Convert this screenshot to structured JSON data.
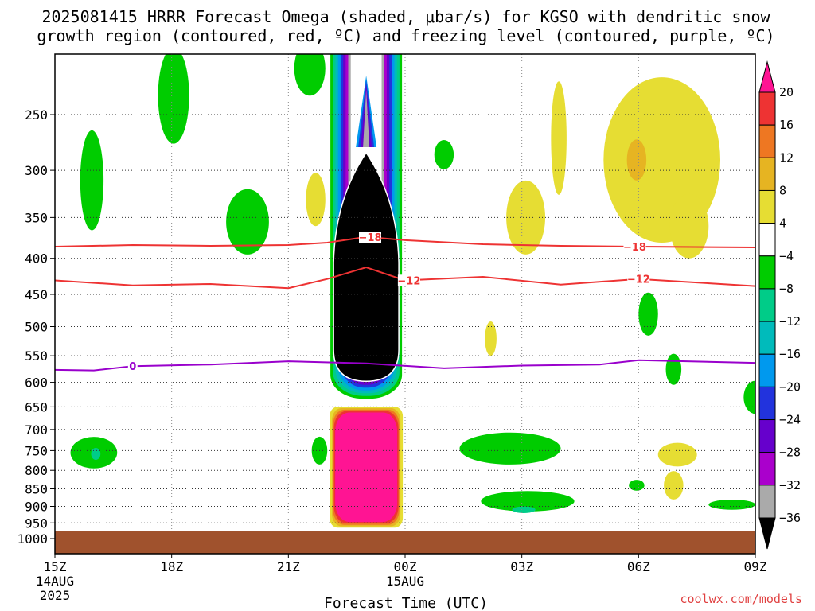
{
  "chart_data": {
    "type": "heatmap",
    "title": "2025081415 HRRR Forecast Omega (shaded, μbar/s) for KGSO with dendritic snow growth region (contoured, red, ºC) and freezing level (contoured, purple, ºC)",
    "title_line1": "2025081415 HRRR Forecast Omega (shaded, μbar/s) for KGSO with dendritic snow",
    "title_line2": "growth region (contoured, red, ºC) and freezing level (contoured, purple, ºC)",
    "xlabel": "Forecast Time (UTC)",
    "ylabel": "",
    "x_ticks": [
      {
        "hours": 0,
        "label": "15Z",
        "sub1": "14AUG",
        "sub2": "2025"
      },
      {
        "hours": 3,
        "label": "18Z",
        "sub1": "",
        "sub2": ""
      },
      {
        "hours": 6,
        "label": "21Z",
        "sub1": "",
        "sub2": ""
      },
      {
        "hours": 9,
        "label": "00Z",
        "sub1": "15AUG",
        "sub2": ""
      },
      {
        "hours": 12,
        "label": "03Z",
        "sub1": "",
        "sub2": ""
      },
      {
        "hours": 15,
        "label": "06Z",
        "sub1": "",
        "sub2": ""
      },
      {
        "hours": 18,
        "label": "09Z",
        "sub1": "",
        "sub2": ""
      }
    ],
    "xlim_hours": [
      0,
      18
    ],
    "y_ticks": [
      250,
      300,
      350,
      400,
      450,
      500,
      550,
      600,
      650,
      700,
      750,
      800,
      850,
      900,
      950,
      1000
    ],
    "ylim_hPa": [
      200,
      1000
    ],
    "y_scale": "log-pressure",
    "grid": true,
    "colorbar": {
      "labels": [
        "20",
        "16",
        "12",
        "8",
        "4",
        "−4",
        "−8",
        "−12",
        "−16",
        "−20",
        "−24",
        "−28",
        "−32",
        "−36"
      ],
      "colors": [
        "#ff1493",
        "#ee3333",
        "#ee7722",
        "#e6b422",
        "#e6dd33",
        "#ffffff",
        "#00cc00",
        "#00cc88",
        "#00bbbb",
        "#0099ee",
        "#2233dd",
        "#6600cc",
        "#aa00cc",
        "#aaaaaa",
        "#000000"
      ],
      "extends": "both"
    },
    "omega_regions": [
      {
        "name": "green",
        "level": "-4 to -8",
        "color": "#00cc00",
        "blobs": [
          {
            "t": 0.95,
            "p": 310,
            "dt": 0.3,
            "dp": 55
          },
          {
            "t": 3.05,
            "p": 235,
            "dt": 0.4,
            "dp": 40
          },
          {
            "t": 4.95,
            "p": 355,
            "dt": 0.55,
            "dp": 40
          },
          {
            "t": 6.55,
            "p": 215,
            "dt": 0.4,
            "dp": 20
          },
          {
            "t": 10.0,
            "p": 285,
            "dt": 0.25,
            "dp": 14
          },
          {
            "t": 15.25,
            "p": 480,
            "dt": 0.25,
            "dp": 35
          },
          {
            "t": 15.9,
            "p": 575,
            "dt": 0.2,
            "dp": 30
          },
          {
            "t": 18.0,
            "p": 630,
            "dt": 0.3,
            "dp": 35
          },
          {
            "t": 1.0,
            "p": 755,
            "dt": 0.6,
            "dp": 40
          },
          {
            "t": 6.8,
            "p": 750,
            "dt": 0.2,
            "dp": 35
          },
          {
            "t": 11.7,
            "p": 745,
            "dt": 1.3,
            "dp": 40
          },
          {
            "t": 12.15,
            "p": 885,
            "dt": 1.2,
            "dp": 30
          },
          {
            "t": 14.95,
            "p": 840,
            "dt": 0.2,
            "dp": 15
          },
          {
            "t": 17.4,
            "p": 895,
            "dt": 0.6,
            "dp": 15
          }
        ]
      },
      {
        "name": "teal",
        "level": "-8 to -12",
        "color": "#00cc88",
        "blobs": [
          {
            "t": 1.05,
            "p": 758,
            "dt": 0.12,
            "dp": 15
          },
          {
            "t": 12.05,
            "p": 910,
            "dt": 0.3,
            "dp": 10
          }
        ]
      },
      {
        "name": "yellow",
        "level": "4 to 8",
        "color": "#e6dd33",
        "blobs": [
          {
            "t": 6.7,
            "p": 330,
            "dt": 0.25,
            "dp": 30
          },
          {
            "t": 12.1,
            "p": 350,
            "dt": 0.5,
            "dp": 45
          },
          {
            "t": 12.95,
            "p": 270,
            "dt": 0.2,
            "dp": 55
          },
          {
            "t": 15.6,
            "p": 290,
            "dt": 1.5,
            "dp": 90
          },
          {
            "t": 16.3,
            "p": 360,
            "dt": 0.5,
            "dp": 40
          },
          {
            "t": 11.2,
            "p": 520,
            "dt": 0.15,
            "dp": 30
          },
          {
            "t": 16.0,
            "p": 760,
            "dt": 0.5,
            "dp": 30
          },
          {
            "t": 15.9,
            "p": 840,
            "dt": 0.25,
            "dp": 40
          }
        ]
      },
      {
        "name": "orange",
        "level": "8 to 12",
        "color": "#e6b422",
        "blobs": [
          {
            "t": 14.95,
            "p": 290,
            "dt": 0.25,
            "dp": 20
          }
        ]
      }
    ],
    "updraft_column": {
      "t_center": 8.0,
      "p_top": 200,
      "p_bottom": 620,
      "min_omega": "< -36"
    },
    "downdraft_column": {
      "t_center": 8.0,
      "p_top": 660,
      "p_bottom": 965,
      "max_omega": "> 20"
    },
    "ground": {
      "p_top": 975,
      "color": "#a0522d"
    },
    "contours": [
      {
        "name": "-18",
        "color": "#ee3333",
        "label_positions": [
          8.1,
          14.9
        ],
        "points": [
          [
            0,
            385
          ],
          [
            2,
            383
          ],
          [
            4,
            384
          ],
          [
            6,
            383
          ],
          [
            7,
            380
          ],
          [
            8,
            373
          ],
          [
            9,
            377
          ],
          [
            11,
            382
          ],
          [
            13,
            384
          ],
          [
            15,
            385
          ],
          [
            18,
            386
          ]
        ]
      },
      {
        "name": "-12",
        "color": "#ee3333",
        "label_positions": [
          9.1,
          15.0
        ],
        "points": [
          [
            0,
            430
          ],
          [
            2,
            437
          ],
          [
            4,
            435
          ],
          [
            6,
            441
          ],
          [
            7,
            428
          ],
          [
            8,
            412
          ],
          [
            9,
            430
          ],
          [
            11,
            425
          ],
          [
            13,
            436
          ],
          [
            15,
            428
          ],
          [
            18,
            438
          ]
        ]
      },
      {
        "name": "0",
        "color": "#9900cc",
        "label_positions": [
          2.0
        ],
        "points": [
          [
            0,
            576
          ],
          [
            1,
            577
          ],
          [
            2,
            569
          ],
          [
            4,
            566
          ],
          [
            6,
            560
          ],
          [
            8,
            564
          ],
          [
            10,
            573
          ],
          [
            12,
            568
          ],
          [
            14,
            566
          ],
          [
            15,
            558
          ],
          [
            18,
            563
          ]
        ]
      }
    ],
    "credit": "coolwx.com/models"
  }
}
